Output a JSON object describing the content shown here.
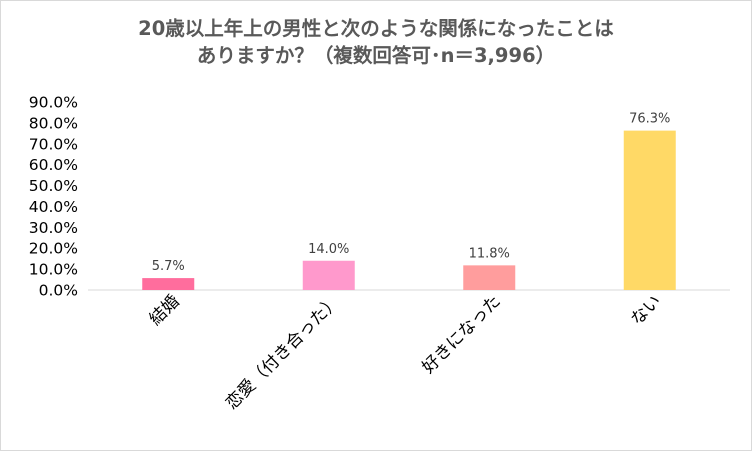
{
  "chart_data": {
    "type": "bar",
    "title_line1": "20歳以上年上の男性と次のような関係になったことは",
    "title_line2": "ありますか？（複数回答可･n＝3,996）",
    "categories": [
      "結婚",
      "恋愛（付き合った）",
      "好きになった",
      "ない"
    ],
    "values": [
      5.7,
      14.0,
      11.8,
      76.3
    ],
    "value_labels": [
      "5.7%",
      "14.0%",
      "11.8%",
      "76.3%"
    ],
    "bar_colors": [
      "#ff6d9d",
      "#ff99cc",
      "#ff9d9d",
      "#ffd966"
    ],
    "ylim": [
      0,
      90
    ],
    "yticks": [
      0,
      10,
      20,
      30,
      40,
      50,
      60,
      70,
      80,
      90
    ],
    "ytick_labels": [
      "0.0%",
      "10.0%",
      "20.0%",
      "30.0%",
      "40.0%",
      "50.0%",
      "60.0%",
      "70.0%",
      "80.0%",
      "90.0%"
    ],
    "grid": false,
    "legend": "none"
  }
}
